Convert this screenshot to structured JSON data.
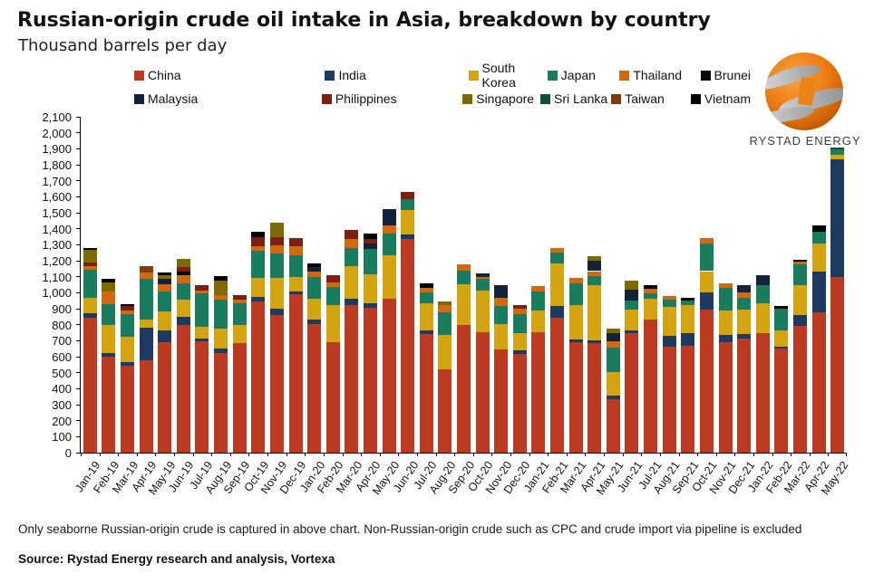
{
  "title": "Russian-origin crude oil intake in Asia, breakdown by country",
  "subtitle": "Thousand barrels per day",
  "logo": {
    "brand": "RYSTAD ENERGY"
  },
  "footer": {
    "note": "Only seaborne Russian-origin crude is captured in above chart. Non-Russian-origin crude such as CPC and crude import via pipeline is excluded",
    "source": "Source: Rystad Energy research and analysis,  Vortexa"
  },
  "chart_data": {
    "type": "bar",
    "stacked": true,
    "title": "Russian-origin crude oil intake in Asia, breakdown by country",
    "ylabel": "Thousand barrels per day",
    "xlabel": "",
    "ylim": [
      0,
      2100
    ],
    "ytick_step": 100,
    "grid": false,
    "legend_position": "top",
    "categories": [
      "Jan-19",
      "Feb-19",
      "Mar-19",
      "Apr-19",
      "May-19",
      "Jun-19",
      "Jul-19",
      "Aug-19",
      "Sep-19",
      "Oct-19",
      "Nov-19",
      "Dec-19",
      "Jan-20",
      "Feb-20",
      "Mar-20",
      "Apr-20",
      "May-20",
      "Jun-20",
      "Jul-20",
      "Aug-20",
      "Sep-20",
      "Oct-20",
      "Nov-20",
      "Dec-20",
      "Jan-21",
      "Feb-21",
      "Mar-21",
      "Apr-21",
      "May-21",
      "Jun-21",
      "Jul-21",
      "Aug-21",
      "Sep-21",
      "Oct-21",
      "Nov-21",
      "Dec-21",
      "Jan-22",
      "Feb-22",
      "Mar-22",
      "Apr-22",
      "May-22"
    ],
    "series": [
      {
        "name": "China",
        "color": "#BB3A21",
        "values": [
          845,
          600,
          545,
          580,
          690,
          800,
          695,
          620,
          685,
          945,
          860,
          990,
          805,
          690,
          925,
          905,
          960,
          1335,
          740,
          520,
          800,
          755,
          645,
          615,
          755,
          845,
          690,
          685,
          335,
          745,
          830,
          660,
          670,
          895,
          690,
          715,
          745,
          650,
          790,
          875,
          1100
        ]
      },
      {
        "name": "India",
        "color": "#1F3A60",
        "values": [
          25,
          25,
          20,
          200,
          75,
          50,
          20,
          30,
          0,
          30,
          40,
          15,
          25,
          0,
          40,
          30,
          0,
          30,
          25,
          0,
          0,
          0,
          0,
          25,
          0,
          70,
          20,
          15,
          20,
          20,
          0,
          70,
          75,
          105,
          45,
          25,
          0,
          10,
          70,
          255,
          735
        ]
      },
      {
        "name": "South Korea",
        "color": "#D3A410",
        "values": [
          100,
          175,
          160,
          50,
          120,
          105,
          70,
          125,
          115,
          115,
          190,
          95,
          135,
          230,
          200,
          180,
          275,
          150,
          170,
          215,
          255,
          260,
          160,
          110,
          135,
          270,
          210,
          345,
          150,
          130,
          135,
          180,
          180,
          135,
          155,
          155,
          190,
          105,
          185,
          175,
          30
        ]
      },
      {
        "name": "Japan",
        "color": "#1A7C5E",
        "values": [
          175,
          130,
          140,
          255,
          125,
          105,
          210,
          180,
          135,
          170,
          155,
          135,
          135,
          115,
          115,
          160,
          135,
          70,
          65,
          145,
          85,
          70,
          110,
          115,
          120,
          65,
          140,
          60,
          150,
          55,
          30,
          45,
          25,
          175,
          140,
          75,
          115,
          135,
          130,
          75,
          30
        ]
      },
      {
        "name": "Thailand",
        "color": "#D2690F",
        "values": [
          20,
          75,
          25,
          40,
          45,
          50,
          20,
          30,
          20,
          30,
          50,
          55,
          30,
          30,
          55,
          0,
          50,
          0,
          30,
          40,
          40,
          15,
          55,
          35,
          30,
          30,
          30,
          30,
          40,
          0,
          30,
          25,
          0,
          30,
          30,
          30,
          0,
          0,
          20,
          0,
          0
        ]
      },
      {
        "name": "Brunei",
        "color": "#0A0A0A",
        "values": [
          0,
          0,
          0,
          0,
          0,
          20,
          0,
          0,
          0,
          0,
          0,
          0,
          0,
          0,
          0,
          0,
          0,
          0,
          0,
          0,
          0,
          0,
          0,
          0,
          0,
          0,
          0,
          0,
          0,
          0,
          0,
          0,
          0,
          0,
          0,
          0,
          0,
          0,
          0,
          0,
          0
        ]
      },
      {
        "name": "Malaysia",
        "color": "#14233C",
        "values": [
          0,
          0,
          0,
          0,
          30,
          0,
          0,
          0,
          0,
          0,
          0,
          0,
          30,
          0,
          0,
          30,
          105,
          0,
          0,
          0,
          0,
          20,
          75,
          0,
          0,
          0,
          0,
          65,
          50,
          70,
          0,
          0,
          0,
          0,
          0,
          50,
          60,
          0,
          0,
          0,
          0
        ]
      },
      {
        "name": "Philippines",
        "color": "#7E1F14",
        "values": [
          25,
          0,
          25,
          0,
          0,
          30,
          30,
          0,
          30,
          55,
          55,
          50,
          0,
          45,
          55,
          30,
          0,
          45,
          0,
          0,
          0,
          0,
          0,
          20,
          0,
          0,
          0,
          0,
          0,
          0,
          0,
          0,
          0,
          0,
          0,
          0,
          0,
          0,
          0,
          0,
          0
        ]
      },
      {
        "name": "Singapore",
        "color": "#7F6A00",
        "values": [
          80,
          60,
          0,
          0,
          25,
          50,
          0,
          90,
          0,
          0,
          85,
          0,
          0,
          0,
          0,
          0,
          0,
          0,
          0,
          25,
          0,
          0,
          0,
          0,
          0,
          0,
          0,
          30,
          30,
          55,
          0,
          0,
          0,
          0,
          0,
          0,
          0,
          0,
          0,
          0,
          0
        ]
      },
      {
        "name": "Sri Lanka",
        "color": "#124F38",
        "values": [
          0,
          0,
          0,
          0,
          0,
          0,
          0,
          0,
          0,
          0,
          0,
          0,
          0,
          0,
          0,
          0,
          0,
          0,
          0,
          0,
          0,
          0,
          0,
          0,
          0,
          0,
          0,
          0,
          0,
          0,
          0,
          0,
          0,
          0,
          0,
          0,
          0,
          0,
          0,
          0,
          15
        ]
      },
      {
        "name": "Taiwan",
        "color": "#7E3A12",
        "values": [
          0,
          0,
          0,
          40,
          0,
          0,
          0,
          0,
          0,
          0,
          0,
          0,
          0,
          0,
          0,
          0,
          0,
          0,
          0,
          0,
          0,
          0,
          0,
          0,
          0,
          0,
          0,
          0,
          0,
          0,
          0,
          0,
          0,
          0,
          0,
          0,
          0,
          0,
          0,
          0,
          0
        ]
      },
      {
        "name": "Vietnam",
        "color": "#000000",
        "values": [
          10,
          20,
          15,
          0,
          15,
          0,
          0,
          30,
          0,
          35,
          0,
          0,
          25,
          0,
          0,
          35,
          0,
          0,
          30,
          0,
          0,
          0,
          0,
          0,
          0,
          0,
          0,
          0,
          0,
          0,
          25,
          0,
          20,
          0,
          0,
          0,
          0,
          15,
          10,
          40,
          0
        ]
      }
    ],
    "legend_order": [
      [
        "China",
        "India",
        "South Korea",
        "Japan",
        "Thailand",
        "Brunei"
      ],
      [
        "Malaysia",
        "Philippines",
        "Singapore",
        "Sri Lanka",
        "Taiwan",
        "Vietnam"
      ]
    ]
  }
}
